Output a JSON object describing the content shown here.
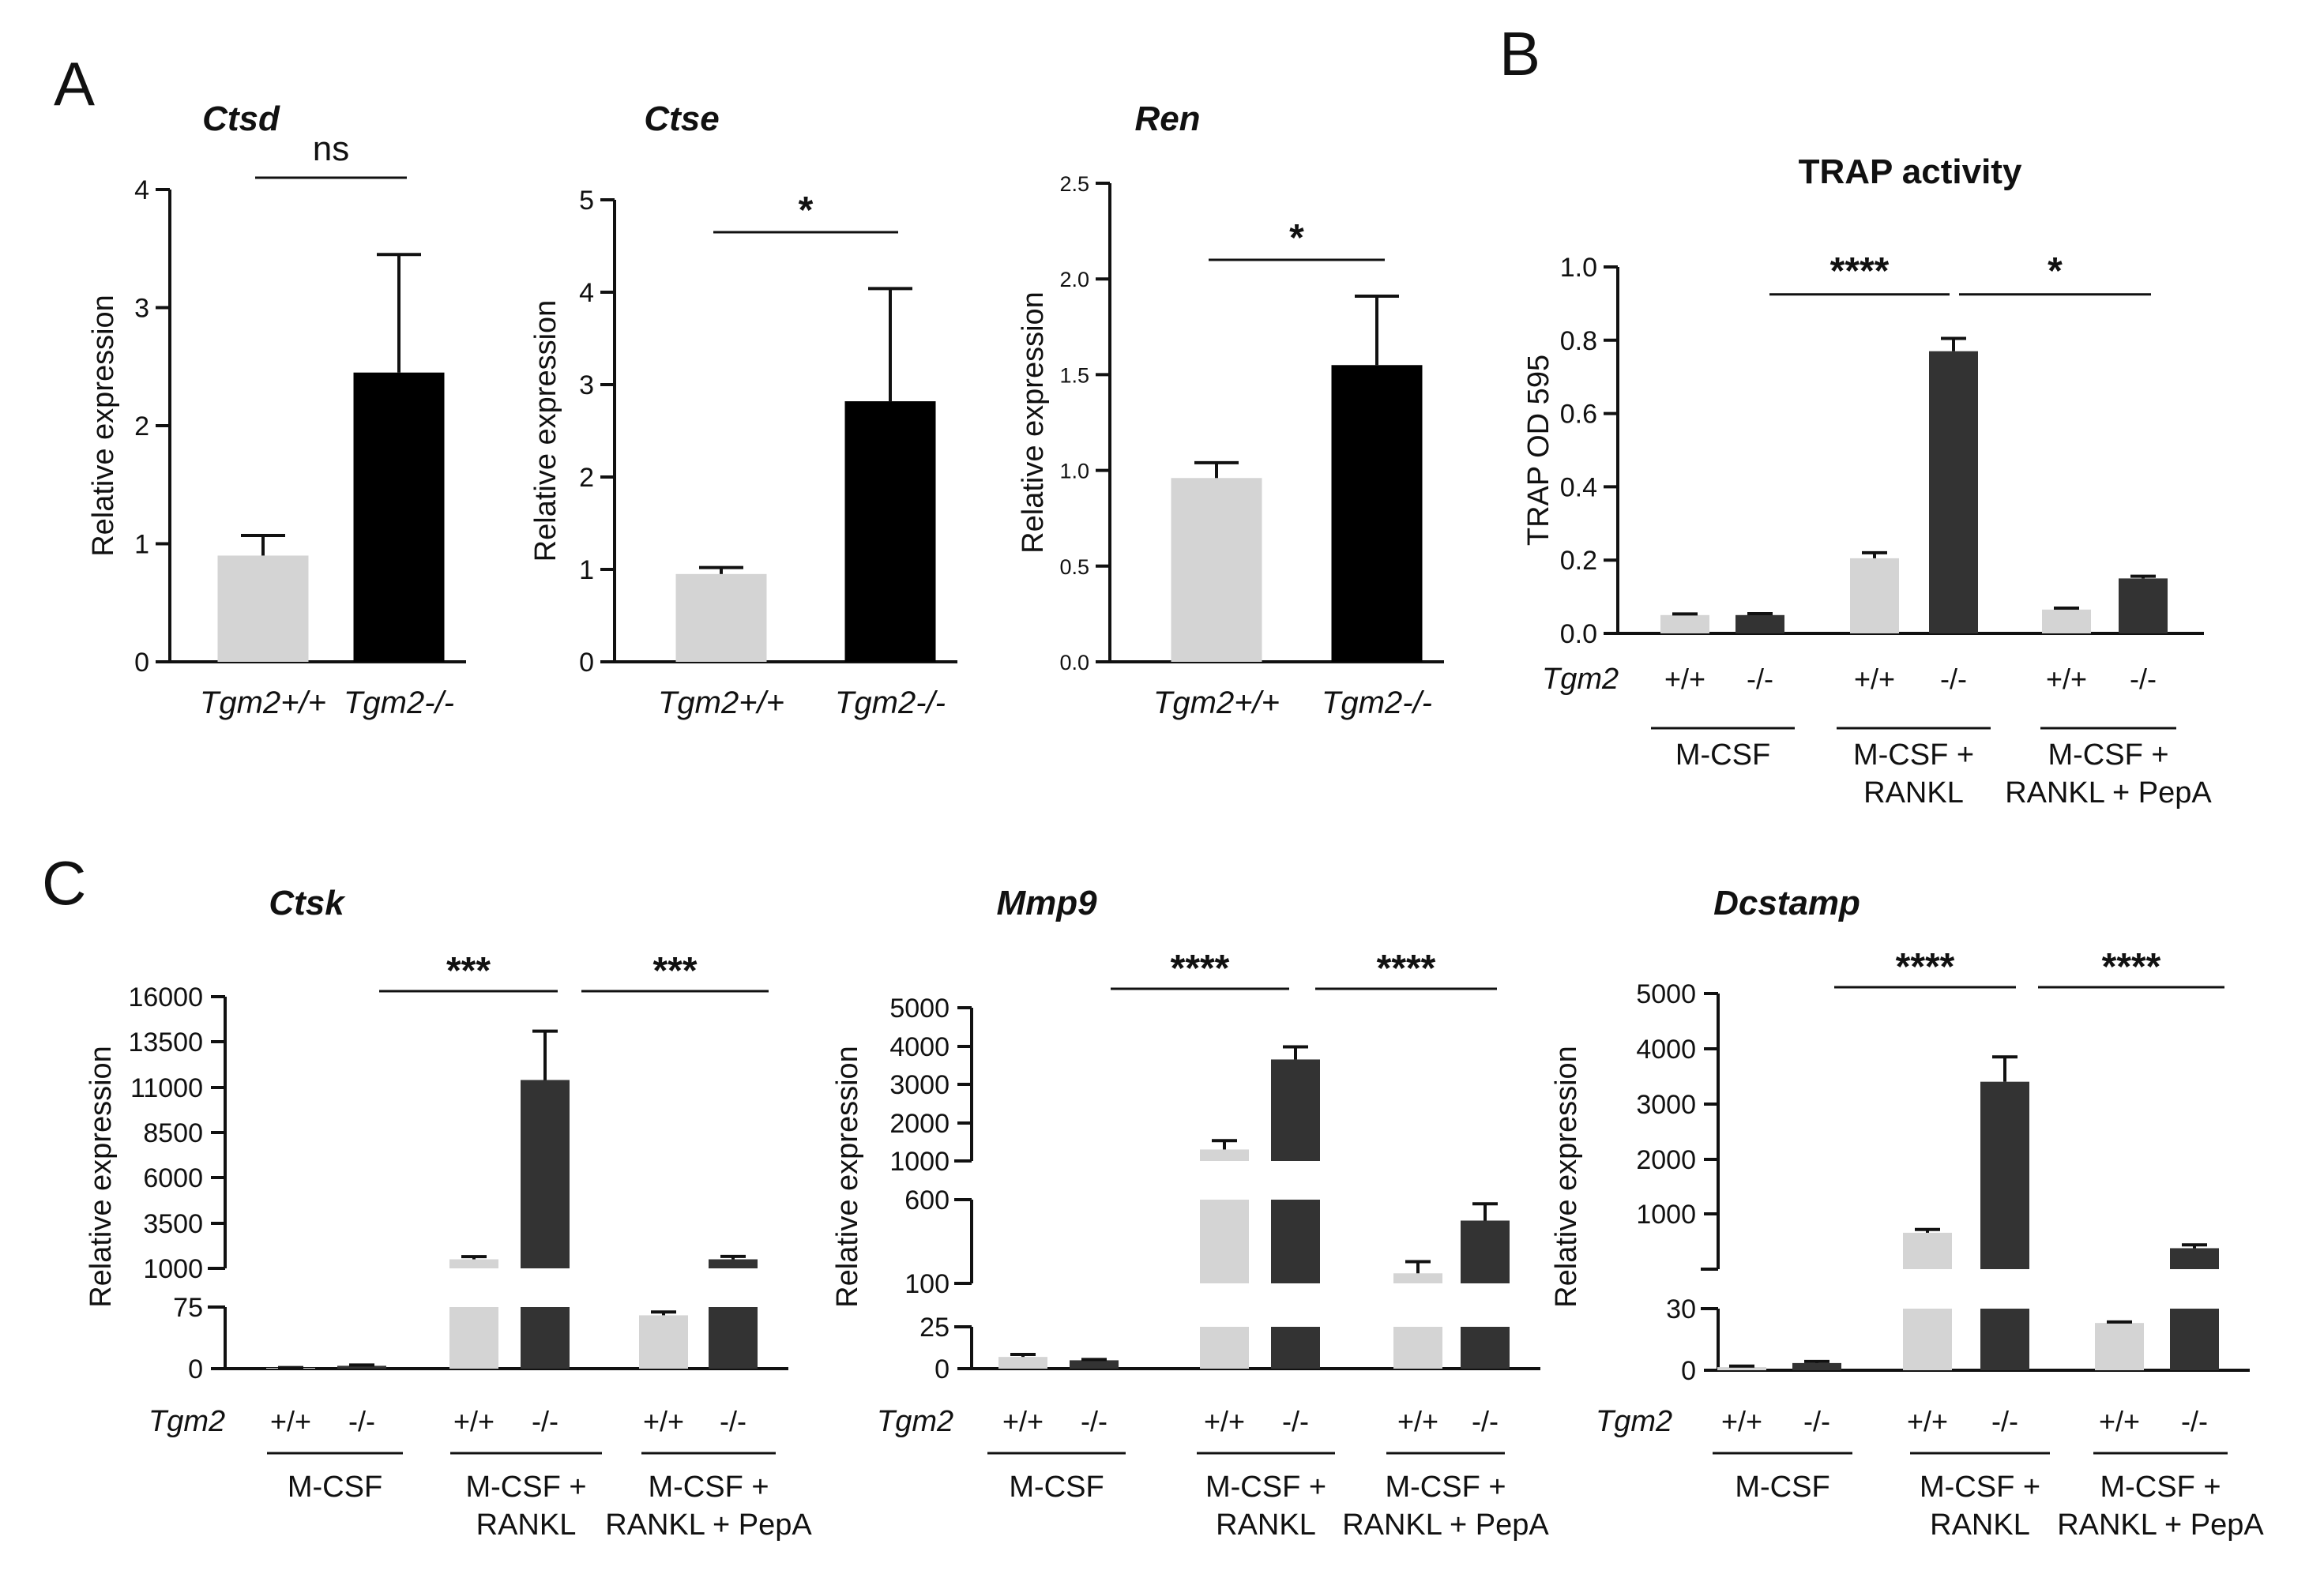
{
  "panel_letters": [
    "A",
    "B",
    "C"
  ],
  "colors": {
    "wt": "#d4d4d4",
    "ko_black": "#000000",
    "ko_dark": "#333333",
    "axis": "#111111"
  },
  "x_labels": {
    "tgm2": "Tgm2",
    "wt_geno": "+/+",
    "ko_geno": "-/-",
    "wt_full": "Tgm2+/+",
    "ko_full": "Tgm2-/-"
  },
  "groups": [
    {
      "lines": [
        "M-CSF"
      ]
    },
    {
      "lines": [
        "M-CSF +",
        "RANKL"
      ]
    },
    {
      "lines": [
        "M-CSF +",
        "RANKL + PepA"
      ]
    }
  ],
  "chart_data": [
    {
      "panel": "A",
      "type": "bar",
      "title": "Ctsd",
      "ylabel": "Relative expression",
      "categories": [
        "Tgm2+/+",
        "Tgm2-/-"
      ],
      "values": [
        0.9,
        2.45
      ],
      "errors": [
        0.17,
        1.0
      ],
      "ylim": [
        0,
        4
      ],
      "yticks": [
        0,
        1,
        2,
        3,
        4
      ],
      "ytick_labels": [
        "0",
        "1",
        "2",
        "3",
        "4"
      ],
      "significance": [
        {
          "label": "ns",
          "from": 0,
          "to": 1,
          "y": 4.1
        }
      ]
    },
    {
      "panel": "A",
      "type": "bar",
      "title": "Ctse",
      "ylabel": "Relative expression",
      "categories": [
        "Tgm2+/+",
        "Tgm2-/-"
      ],
      "values": [
        0.95,
        2.82
      ],
      "errors": [
        0.07,
        1.22
      ],
      "ylim": [
        0,
        5
      ],
      "yticks": [
        0,
        1,
        2,
        3,
        4,
        5
      ],
      "ytick_labels": [
        "0",
        "1",
        "2",
        "3",
        "4",
        "5"
      ],
      "significance": [
        {
          "label": "*",
          "from": 0,
          "to": 1,
          "y": 4.65
        }
      ]
    },
    {
      "panel": "A",
      "type": "bar",
      "title": "Ren",
      "ylabel": "Relative expression",
      "categories": [
        "Tgm2+/+",
        "Tgm2-/-"
      ],
      "values": [
        0.96,
        1.55
      ],
      "errors": [
        0.08,
        0.36
      ],
      "ylim": [
        0,
        2.5
      ],
      "yticks": [
        0,
        0.5,
        1.0,
        1.5,
        2.0,
        2.5
      ],
      "ytick_labels": [
        "0.0",
        "0.5",
        "1.0",
        "1.5",
        "2.0",
        "2.5"
      ],
      "significance": [
        {
          "label": "*",
          "from": 0,
          "to": 1,
          "y": 2.1
        }
      ]
    },
    {
      "panel": "B",
      "type": "bar",
      "title": "TRAP activity",
      "ylabel": "TRAP OD 595",
      "series": [
        {
          "name": "+/+",
          "values": [
            0.05,
            0.205,
            0.065
          ],
          "errors": [
            0.003,
            0.015,
            0.004
          ]
        },
        {
          "name": "-/-",
          "values": [
            0.05,
            0.77,
            0.15
          ],
          "errors": [
            0.004,
            0.035,
            0.006
          ]
        }
      ],
      "groups": [
        "M-CSF",
        "M-CSF + RANKL",
        "M-CSF + RANKL + PepA"
      ],
      "ylim": [
        0,
        1.0
      ],
      "yticks": [
        0,
        0.2,
        0.4,
        0.6,
        0.8,
        1.0
      ],
      "ytick_labels": [
        "0.0",
        "0.2",
        "0.4",
        "0.6",
        "0.8",
        "1.0"
      ],
      "significance": [
        {
          "label": "****",
          "from": 1,
          "to": 4,
          "y": 0.925
        },
        {
          "label": "*",
          "from": 4,
          "to": 6,
          "y": 0.925
        }
      ]
    },
    {
      "panel": "C",
      "type": "bar",
      "title": "Ctsk",
      "ylabel": "Relative expression",
      "series": [
        {
          "name": "+/+",
          "values": [
            1,
            1500,
            65
          ],
          "errors": [
            0.3,
            150,
            4
          ]
        },
        {
          "name": "-/-",
          "values": [
            3.5,
            11400,
            1500
          ],
          "errors": [
            1,
            2700,
            160
          ]
        }
      ],
      "groups": [
        "M-CSF",
        "M-CSF + RANKL",
        "M-CSF + RANKL + PepA"
      ],
      "ylim": [
        0,
        16000
      ],
      "broken_axis": [
        {
          "range": [
            0,
            75
          ],
          "ticks": [
            0,
            75
          ]
        },
        {
          "range": [
            1000,
            16000
          ],
          "ticks": [
            1000,
            3500,
            6000,
            8500,
            11000,
            13500,
            16000
          ]
        }
      ],
      "significance": [
        {
          "label": "***",
          "from": 1,
          "to": 4,
          "y": 15000
        },
        {
          "label": "***",
          "from": 4,
          "to": 6,
          "y": 15000
        }
      ]
    },
    {
      "panel": "C",
      "type": "bar",
      "title": "Mmp9",
      "ylabel": "Relative expression",
      "series": [
        {
          "name": "+/+",
          "values": [
            7,
            1300,
            160
          ],
          "errors": [
            1.5,
            230,
            70
          ]
        },
        {
          "name": "-/-",
          "values": [
            5,
            3650,
            475
          ],
          "errors": [
            0.5,
            330,
            100
          ]
        }
      ],
      "groups": [
        "M-CSF",
        "M-CSF + RANKL",
        "M-CSF + RANKL + PepA"
      ],
      "ylim": [
        0,
        5000
      ],
      "broken_axis": [
        {
          "range": [
            0,
            25
          ],
          "ticks": [
            0,
            25
          ]
        },
        {
          "range": [
            100,
            600
          ],
          "ticks": [
            100,
            600
          ]
        },
        {
          "range": [
            1000,
            5000
          ],
          "ticks": [
            1000,
            2000,
            3000,
            4000,
            5000
          ]
        }
      ],
      "significance": [
        {
          "label": "****",
          "from": 1,
          "to": 4,
          "y": 5500
        },
        {
          "label": "****",
          "from": 4,
          "to": 6,
          "y": 5500
        }
      ]
    },
    {
      "panel": "C",
      "type": "bar",
      "title": "Dcstamp",
      "ylabel": "Relative expression",
      "series": [
        {
          "name": "+/+",
          "values": [
            1.5,
            660,
            23
          ],
          "errors": [
            0.5,
            60,
            0.5
          ]
        },
        {
          "name": "-/-",
          "values": [
            3.5,
            3400,
            380
          ],
          "errors": [
            0.8,
            450,
            60
          ]
        }
      ],
      "groups": [
        "M-CSF",
        "M-CSF + RANKL",
        "M-CSF + RANKL + PepA"
      ],
      "ylim": [
        0,
        5000
      ],
      "broken_axis": [
        {
          "range": [
            0,
            30
          ],
          "ticks": [
            0,
            30
          ]
        },
        {
          "range": [
            0,
            5000
          ],
          "ticks": [
            1000,
            2000,
            3000,
            4000,
            5000
          ]
        }
      ],
      "significance": [
        {
          "label": "****",
          "from": 1,
          "to": 4,
          "y": 5300
        },
        {
          "label": "****",
          "from": 4,
          "to": 6,
          "y": 5300
        }
      ]
    }
  ]
}
